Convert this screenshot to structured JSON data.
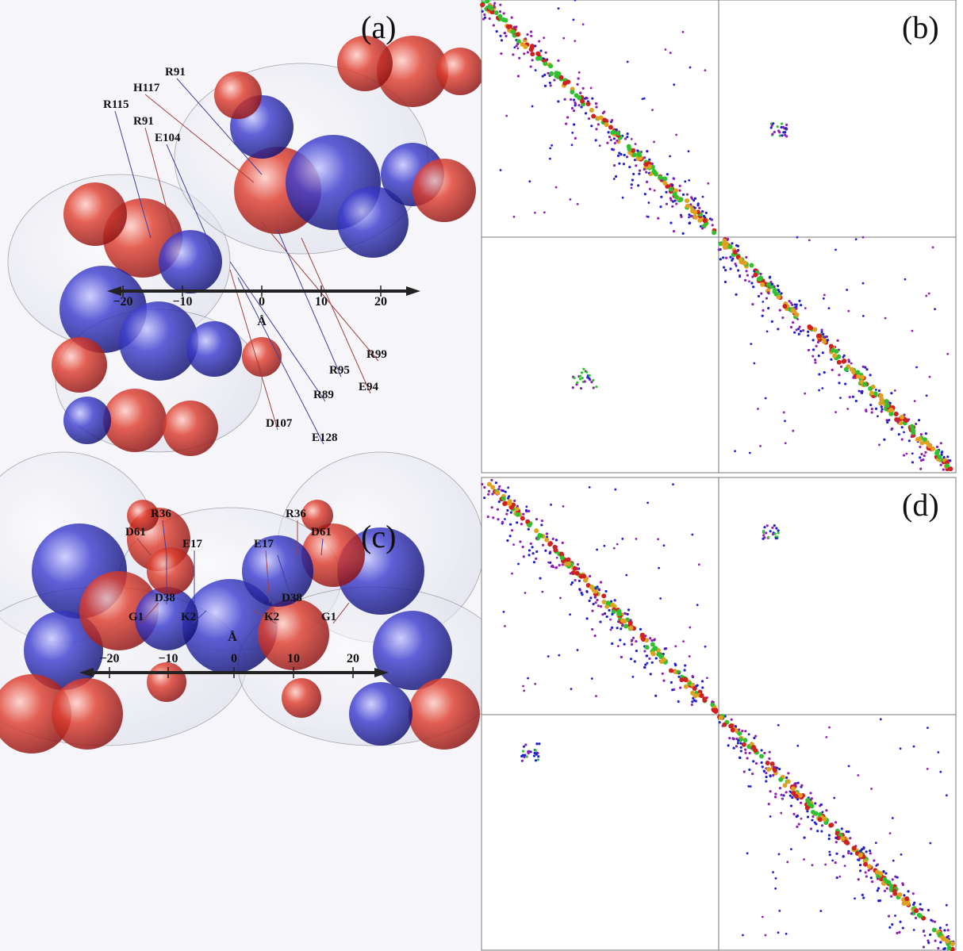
{
  "panels": [
    {
      "label": "(a)",
      "residues": [
        "R91",
        "H117",
        "R115",
        "R91",
        "E104",
        "R99",
        "R95",
        "E94",
        "R89",
        "D107",
        "E128"
      ],
      "axis": {
        "ticks": [
          "−20",
          "−10",
          "0",
          "10",
          "20"
        ],
        "unit": "Å"
      }
    },
    {
      "label": "(c)",
      "residues": [
        "R36",
        "D61",
        "E17",
        "R36",
        "D61",
        "E17",
        "D38",
        "G1",
        "K2",
        "K2",
        "D38",
        "G1"
      ],
      "axis": {
        "ticks": [
          "−20",
          "−10",
          "0",
          "10",
          "20"
        ],
        "unit": "Å"
      }
    }
  ],
  "maps": [
    {
      "label": "(b)"
    },
    {
      "label": "(d)"
    }
  ]
}
